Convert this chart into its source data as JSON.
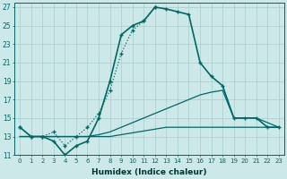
{
  "xlabel": "Humidex (Indice chaleur)",
  "ylabel": "",
  "background_color": "#cce8e8",
  "grid_color": "#aacccc",
  "line_color": "#006666",
  "xlim": [
    -0.5,
    23.5
  ],
  "ylim": [
    11,
    27.5
  ],
  "yticks": [
    11,
    13,
    15,
    17,
    19,
    21,
    23,
    25,
    27
  ],
  "xticks": [
    0,
    1,
    2,
    3,
    4,
    5,
    6,
    7,
    8,
    9,
    10,
    11,
    12,
    13,
    14,
    15,
    16,
    17,
    18,
    19,
    20,
    21,
    22,
    23
  ],
  "series": [
    {
      "x": [
        0,
        1,
        2,
        3,
        4,
        5,
        6,
        7,
        8,
        9,
        10,
        11,
        12
      ],
      "y": [
        14,
        13,
        13,
        13.5,
        12,
        13,
        14,
        15.5,
        18,
        22,
        24.5,
        25.5,
        27
      ],
      "color": "#006666",
      "linewidth": 0.9,
      "linestyle": "dotted",
      "marker": "+",
      "markersize": 3
    },
    {
      "x": [
        0,
        1,
        2,
        3,
        4,
        5,
        6,
        7,
        8,
        9,
        10,
        11,
        12,
        13,
        14,
        15,
        16,
        17,
        18,
        19,
        20,
        21,
        22,
        23
      ],
      "y": [
        14,
        13,
        13,
        12.5,
        11,
        12,
        12.5,
        15,
        19,
        24,
        25.0,
        25.5,
        27,
        26.8,
        26.5,
        26.2,
        21,
        19.5,
        18.5,
        15,
        15,
        15,
        14,
        14
      ],
      "color": "#006666",
      "linewidth": 1.2,
      "linestyle": "solid",
      "marker": "+",
      "markersize": 3
    },
    {
      "x": [
        0,
        1,
        2,
        3,
        4,
        5,
        6,
        7,
        8,
        9,
        10,
        11,
        12,
        13,
        14,
        15,
        16,
        17,
        18,
        19,
        20,
        21,
        22,
        23
      ],
      "y": [
        13,
        13,
        13,
        13,
        13,
        13,
        13,
        13.2,
        13.5,
        14,
        14.5,
        15,
        15.5,
        16,
        16.5,
        17,
        17.5,
        17.8,
        18,
        15,
        15,
        15,
        14.5,
        14
      ],
      "color": "#006666",
      "linewidth": 0.9,
      "linestyle": "solid",
      "marker": null,
      "markersize": 0
    },
    {
      "x": [
        0,
        1,
        2,
        3,
        4,
        5,
        6,
        7,
        8,
        9,
        10,
        11,
        12,
        13,
        14,
        15,
        16,
        17,
        18,
        19,
        20,
        21,
        22,
        23
      ],
      "y": [
        13,
        13,
        13,
        13,
        13,
        13,
        13,
        13,
        13,
        13.2,
        13.4,
        13.6,
        13.8,
        14,
        14,
        14,
        14,
        14,
        14,
        14,
        14,
        14,
        14,
        14
      ],
      "color": "#006666",
      "linewidth": 0.9,
      "linestyle": "solid",
      "marker": null,
      "markersize": 0
    }
  ]
}
